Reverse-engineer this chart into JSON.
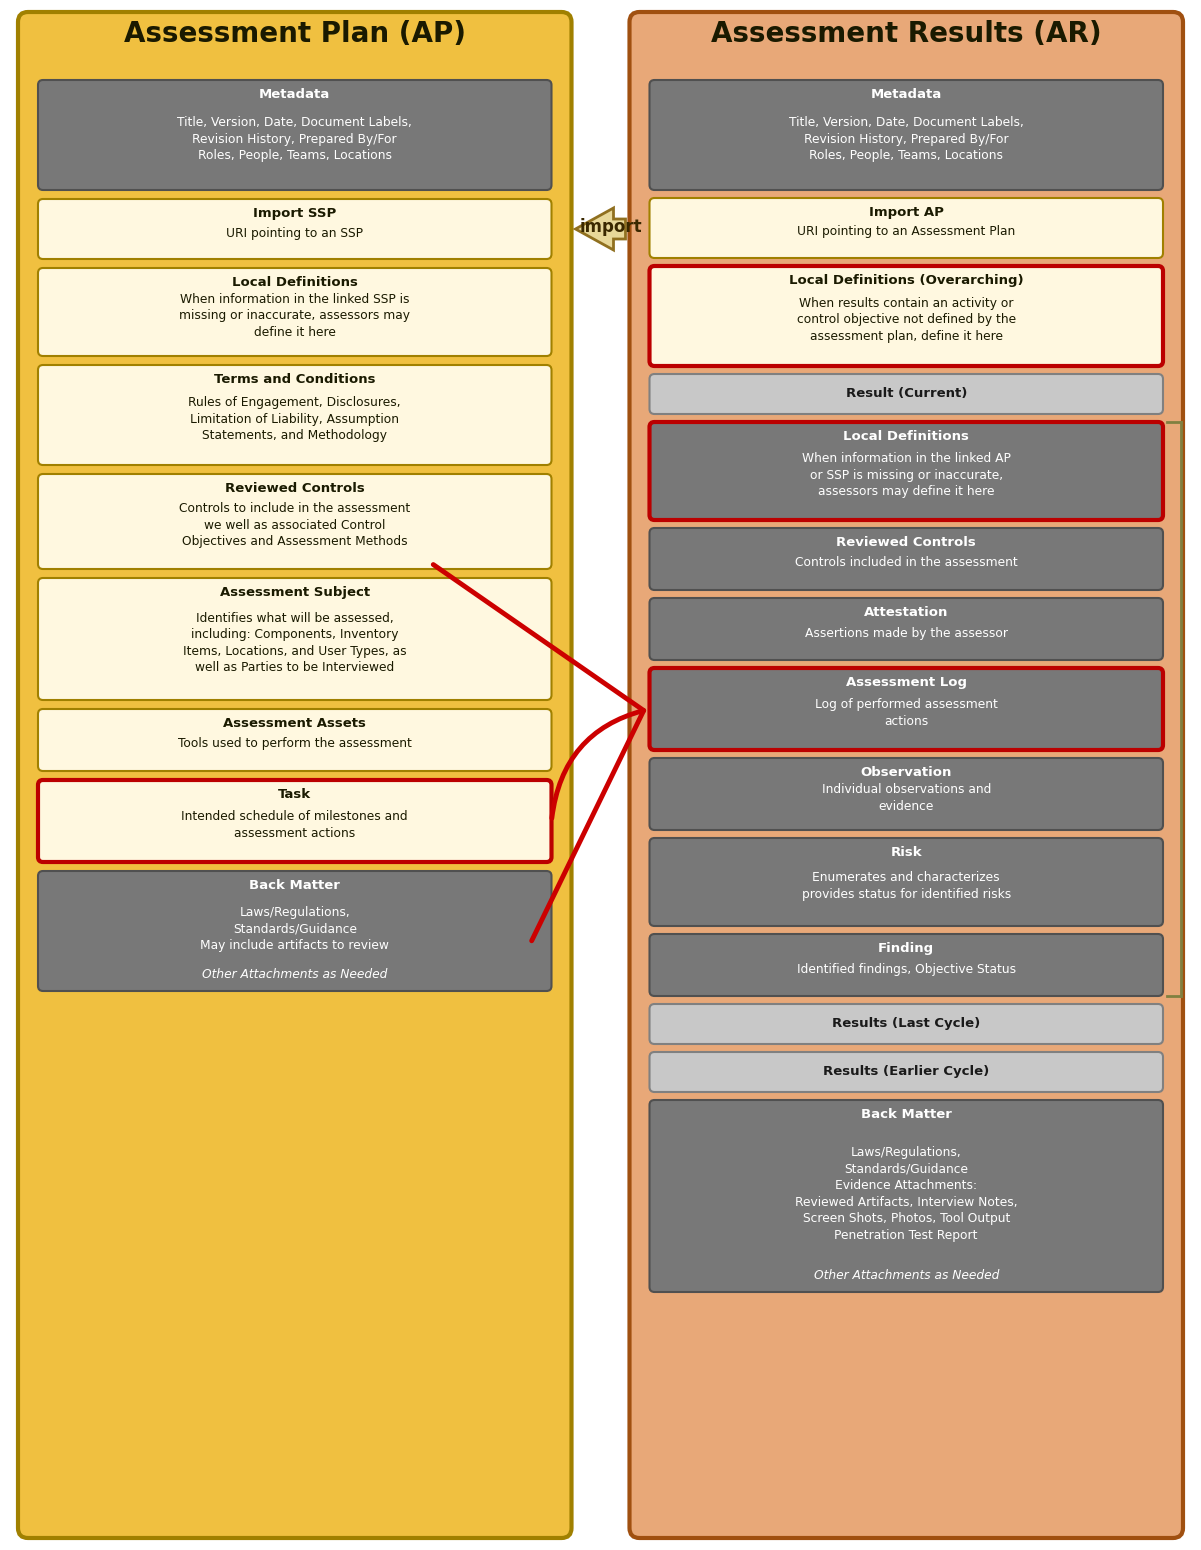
{
  "fig_width": 12.01,
  "fig_height": 15.5,
  "bg_color": "#ffffff",
  "ap_bg": "#f0c040",
  "ar_bg": "#e8a878",
  "ap_border": "#a08000",
  "ar_border": "#a05010",
  "gray_box_bg": "#787878",
  "light_box_bg": "#fff8e0",
  "light_box_border": "#a08000",
  "red_border": "#bb0000",
  "section_bg": "#c8c8c8",
  "section_border": "#808080",
  "ap_title": "Assessment Plan (AP)",
  "ar_title": "Assessment Results (AR)",
  "ap_boxes": [
    {
      "title": "Metadata",
      "body": "Title, Version, Date, Document Labels,\nRevision History, Prepared By/For\nRoles, People, Teams, Locations",
      "style": "gray"
    },
    {
      "title": "Import SSP",
      "body": "URI pointing to an SSP",
      "style": "light"
    },
    {
      "title": "Local Definitions",
      "body": "When information in the linked SSP is\nmissing or inaccurate, assessors may\ndefine it here",
      "style": "light"
    },
    {
      "title": "Terms and Conditions",
      "body": "Rules of Engagement, Disclosures,\nLimitation of Liability, Assumption\nStatements, and Methodology",
      "style": "light"
    },
    {
      "title": "Reviewed Controls",
      "body": "Controls to include in the assessment\nwe well as associated Control\nObjectives and Assessment Methods",
      "style": "light"
    },
    {
      "title": "Assessment Subject",
      "body": "Identifies what will be assessed,\nincluding: Components, Inventory\nItems, Locations, and User Types, as\nwell as Parties to be Interviewed",
      "style": "light"
    },
    {
      "title": "Assessment Assets",
      "body": "Tools used to perform the assessment",
      "style": "light"
    },
    {
      "title": "Task",
      "body": "Intended schedule of milestones and\nassessment actions",
      "style": "light_red"
    },
    {
      "title": "Back Matter",
      "body": "Laws/Regulations,\nStandards/Guidance\nMay include artifacts to review\nOther Attachments as Needed",
      "style": "gray",
      "italic_last": true
    }
  ],
  "ar_boxes": [
    {
      "title": "Metadata",
      "body": "Title, Version, Date, Document Labels,\nRevision History, Prepared By/For\nRoles, People, Teams, Locations",
      "style": "gray"
    },
    {
      "title": "Import AP",
      "body": "URI pointing to an Assessment Plan",
      "style": "light"
    },
    {
      "title": "Local Definitions (Overarching)",
      "body": "When results contain an activity or\ncontrol objective not defined by the\nassessment plan, define it here",
      "style": "light_red"
    },
    {
      "title": "Result (Current)",
      "body": "",
      "style": "section"
    },
    {
      "title": "Local Definitions",
      "body": "When information in the linked AP\nor SSP is missing or inaccurate,\nassessors may define it here",
      "style": "gray_red"
    },
    {
      "title": "Reviewed Controls",
      "body": "Controls included in the assessment",
      "style": "gray"
    },
    {
      "title": "Attestation",
      "body": "Assertions made by the assessor",
      "style": "gray"
    },
    {
      "title": "Assessment Log",
      "body": "Log of performed assessment\nactions",
      "style": "gray_red"
    },
    {
      "title": "Observation",
      "body": "Individual observations and\nevidence",
      "style": "gray"
    },
    {
      "title": "Risk",
      "body": "Enumerates and characterizes\nprovides status for identified risks",
      "style": "gray"
    },
    {
      "title": "Finding",
      "body": "Identified findings, Objective Status",
      "style": "gray"
    },
    {
      "title": "Results (Last Cycle)",
      "body": "",
      "style": "section"
    },
    {
      "title": "Results (Earlier Cycle)",
      "body": "",
      "style": "section"
    },
    {
      "title": "Back Matter",
      "body": "Laws/Regulations,\nStandards/Guidance\nEvidence Attachments:\nReviewed Artifacts, Interview Notes,\nScreen Shots, Photos, Tool Output\nPenetration Test Report\nOther Attachments as Needed",
      "style": "gray",
      "italic_last": true
    }
  ]
}
